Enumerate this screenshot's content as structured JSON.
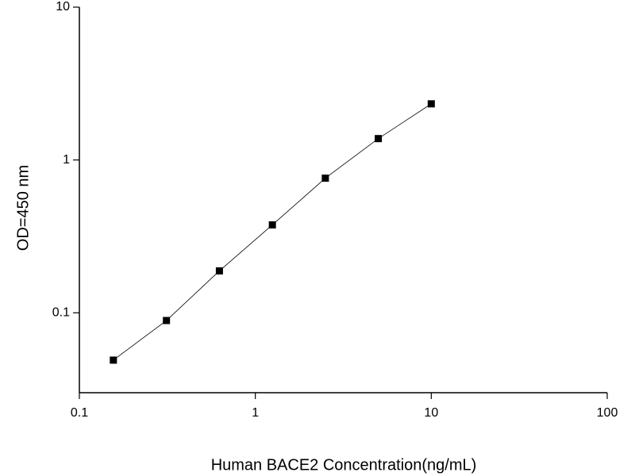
{
  "chart_data": {
    "type": "line",
    "x_label": "Human BACE2 Concentration(ng/mL)",
    "y_label": "OD=450 nm",
    "x": [
      0.156,
      0.3125,
      0.625,
      1.25,
      2.5,
      5,
      10
    ],
    "series": [
      {
        "color": "#000000",
        "values": [
          0.049,
          0.089,
          0.188,
          0.376,
          0.76,
          1.38,
          2.33
        ]
      }
    ],
    "xlim": [
      0.1,
      100
    ],
    "xticks": [
      0.1,
      1,
      10,
      100
    ],
    "ylim": [
      0.03,
      10
    ],
    "yticks": [
      0.1,
      1,
      10
    ],
    "xscale": "log",
    "yscale": "log",
    "grid": false
  }
}
